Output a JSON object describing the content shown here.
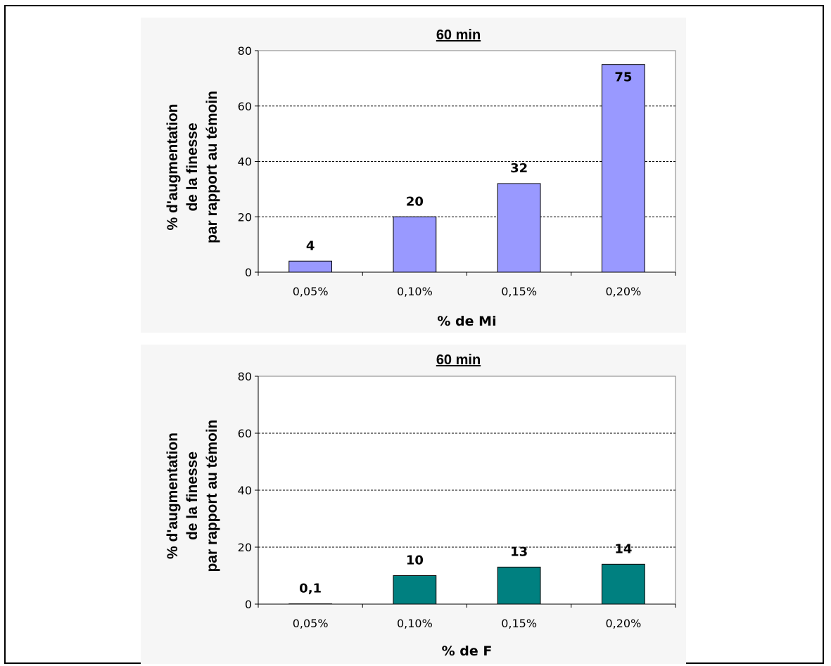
{
  "chart_data": [
    {
      "type": "bar",
      "title": "60 min",
      "xlabel": "% de Mi",
      "ylabel_lines": [
        "% d'augmentation",
        "de la finesse",
        "par rapport au témoin"
      ],
      "categories": [
        "0,05%",
        "0,10%",
        "0,15%",
        "0,20%"
      ],
      "values": [
        4,
        20,
        32,
        75
      ],
      "data_labels": [
        "4",
        "20",
        "32",
        "75"
      ],
      "ylim": [
        0,
        80
      ],
      "yticks": [
        "0",
        "20",
        "40",
        "60",
        "80"
      ],
      "grid": true,
      "bar_color": "#9999ff"
    },
    {
      "type": "bar",
      "title": "60 min",
      "xlabel": "% de F",
      "ylabel_lines": [
        "% d'augmentation",
        "de la finesse",
        "par rapport au témoin"
      ],
      "categories": [
        "0,05%",
        "0,10%",
        "0,15%",
        "0,20%"
      ],
      "values": [
        0.1,
        10,
        13,
        14
      ],
      "data_labels": [
        "0,1",
        "10",
        "13",
        "14"
      ],
      "ylim": [
        0,
        80
      ],
      "yticks": [
        "0",
        "20",
        "40",
        "60",
        "80"
      ],
      "grid": true,
      "bar_color": "#008080"
    }
  ]
}
